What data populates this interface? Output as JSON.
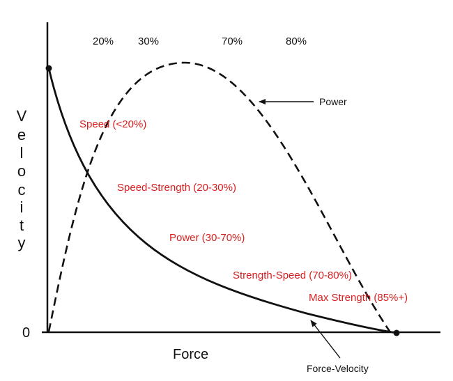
{
  "percent_markers": [
    "20%",
    "30%",
    "70%",
    "80%"
  ],
  "axis": {
    "origin_label": "0",
    "x_title": "Force",
    "y_title_letters": [
      "V",
      "e",
      "l",
      "o",
      "c",
      "i",
      "t",
      "y"
    ]
  },
  "curves": {
    "power_label": "Power",
    "force_velocity_label": "Force-Velocity"
  },
  "zones": [
    {
      "label": "Speed (<20%)"
    },
    {
      "label": "Speed-Strength (20-30%)"
    },
    {
      "label": "Power (30-70%)"
    },
    {
      "label": "Strength-Speed (70-80%)"
    },
    {
      "label": "Max Strength (85%+)"
    }
  ],
  "colors": {
    "axis": "#111111",
    "curve": "#111111",
    "zone_text": "#d81e1e"
  }
}
